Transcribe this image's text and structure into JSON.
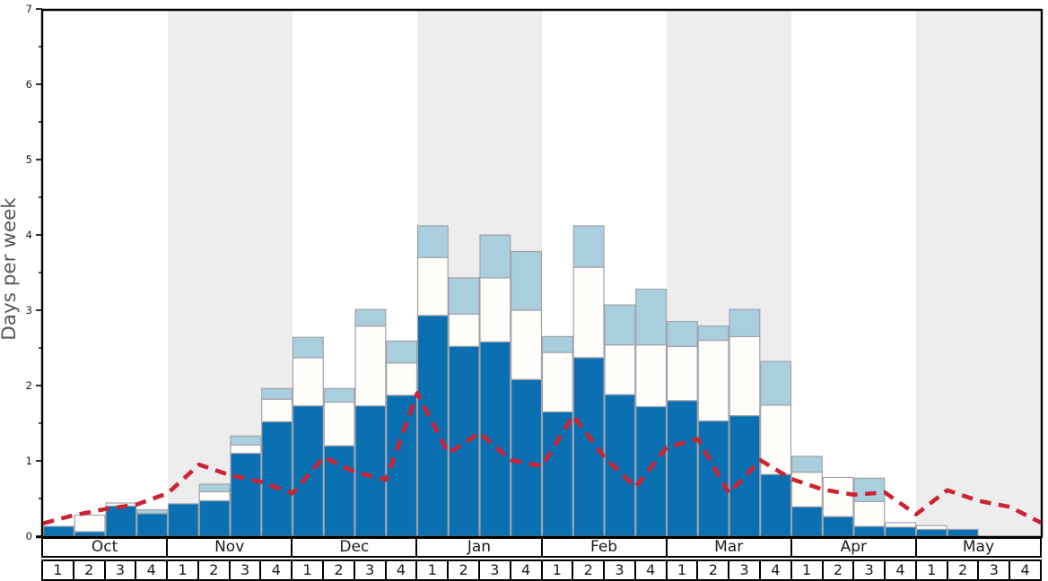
{
  "ylabel": "Days per week",
  "y_axis": {
    "tick_labels": [
      "0",
      "1",
      "2",
      "3",
      "4",
      "5",
      "6",
      "7"
    ],
    "min": 0,
    "max": 7,
    "minor_tick_step": 0.5
  },
  "months": [
    "Oct",
    "Nov",
    "Dec",
    "Jan",
    "Feb",
    "Mar",
    "Apr",
    "May"
  ],
  "week_labels": [
    "1",
    "2",
    "3",
    "4"
  ],
  "colors": {
    "dark_blue": "#0a70b2",
    "light_blue": "#a9cfdf",
    "bar_white": "#fffefb",
    "bar_border": "#a2a2aa",
    "band_gray": "#ededed",
    "red_line": "#cc2333",
    "axis": "#000000",
    "ylabel_color": "#585858",
    "tick_label_color": "#1a1a1a"
  },
  "chart_data": {
    "type": "bar",
    "subtype": "stacked-bars-with-dashed-line-overlay",
    "title": "",
    "xlabel": "",
    "ylabel": "Days per week",
    "ylim": [
      0,
      7
    ],
    "grid": false,
    "legend": "none",
    "background_bands": {
      "shaded_months": [
        "Nov",
        "Jan",
        "Mar",
        "May"
      ],
      "color": "#ededed"
    },
    "categories": [
      "Oct w1",
      "Oct w2",
      "Oct w3",
      "Oct w4",
      "Nov w1",
      "Nov w2",
      "Nov w3",
      "Nov w4",
      "Dec w1",
      "Dec w2",
      "Dec w3",
      "Dec w4",
      "Jan w1",
      "Jan w2",
      "Jan w3",
      "Jan w4",
      "Feb w1",
      "Feb w2",
      "Feb w3",
      "Feb w4",
      "Mar w1",
      "Mar w2",
      "Mar w3",
      "Mar w4",
      "Apr w1",
      "Apr w2",
      "Apr w3",
      "Apr w4",
      "May w1",
      "May w2",
      "May w3",
      "May w4"
    ],
    "series": [
      {
        "name": "dark-blue-days",
        "role": "bottom segment top value (days per week)",
        "values": [
          0.13,
          0.06,
          0.4,
          0.3,
          0.43,
          0.47,
          1.1,
          1.52,
          1.73,
          1.2,
          1.73,
          1.87,
          2.93,
          2.52,
          2.58,
          2.08,
          1.65,
          2.37,
          1.88,
          1.72,
          1.8,
          1.53,
          1.6,
          0.82,
          0.39,
          0.26,
          0.13,
          0.12,
          0.09,
          0.09,
          0,
          0
        ]
      },
      {
        "name": "white-days",
        "role": "cumulative top of white segment (days per week)",
        "values": [
          0.13,
          0.28,
          0.44,
          0.3,
          0.43,
          0.59,
          1.21,
          1.82,
          2.37,
          1.78,
          2.79,
          2.3,
          3.7,
          2.95,
          3.43,
          3.0,
          2.44,
          3.57,
          2.54,
          2.54,
          2.52,
          2.6,
          2.65,
          1.74,
          0.85,
          0.78,
          0.46,
          0.18,
          0.14,
          0.09,
          0,
          0
        ]
      },
      {
        "name": "light-blue-days",
        "role": "cumulative top of light-blue segment = total bar height (days per week)",
        "values": [
          0.13,
          0.28,
          0.44,
          0.35,
          0.43,
          0.69,
          1.33,
          1.96,
          2.64,
          1.96,
          3.01,
          2.59,
          4.12,
          3.43,
          4.0,
          3.78,
          2.65,
          4.12,
          3.07,
          3.28,
          2.85,
          2.79,
          3.01,
          2.32,
          1.06,
          0.78,
          0.77,
          0.18,
          0.14,
          0.09,
          0,
          0
        ]
      }
    ],
    "red_dashed_line": {
      "name": "red-dashed-trend-line",
      "x_positions": "week boundaries, 33 points from start of Oct w1 to end of May w4",
      "values": [
        0.17,
        0.28,
        0.36,
        0.42,
        0.57,
        0.95,
        0.81,
        0.72,
        0.57,
        1.05,
        0.85,
        0.75,
        1.9,
        1.1,
        1.37,
        1.01,
        0.93,
        1.6,
        1.05,
        0.65,
        1.18,
        1.29,
        0.57,
        1.01,
        0.76,
        0.62,
        0.55,
        0.58,
        0.29,
        0.61,
        0.47,
        0.39,
        0.18
      ]
    }
  }
}
